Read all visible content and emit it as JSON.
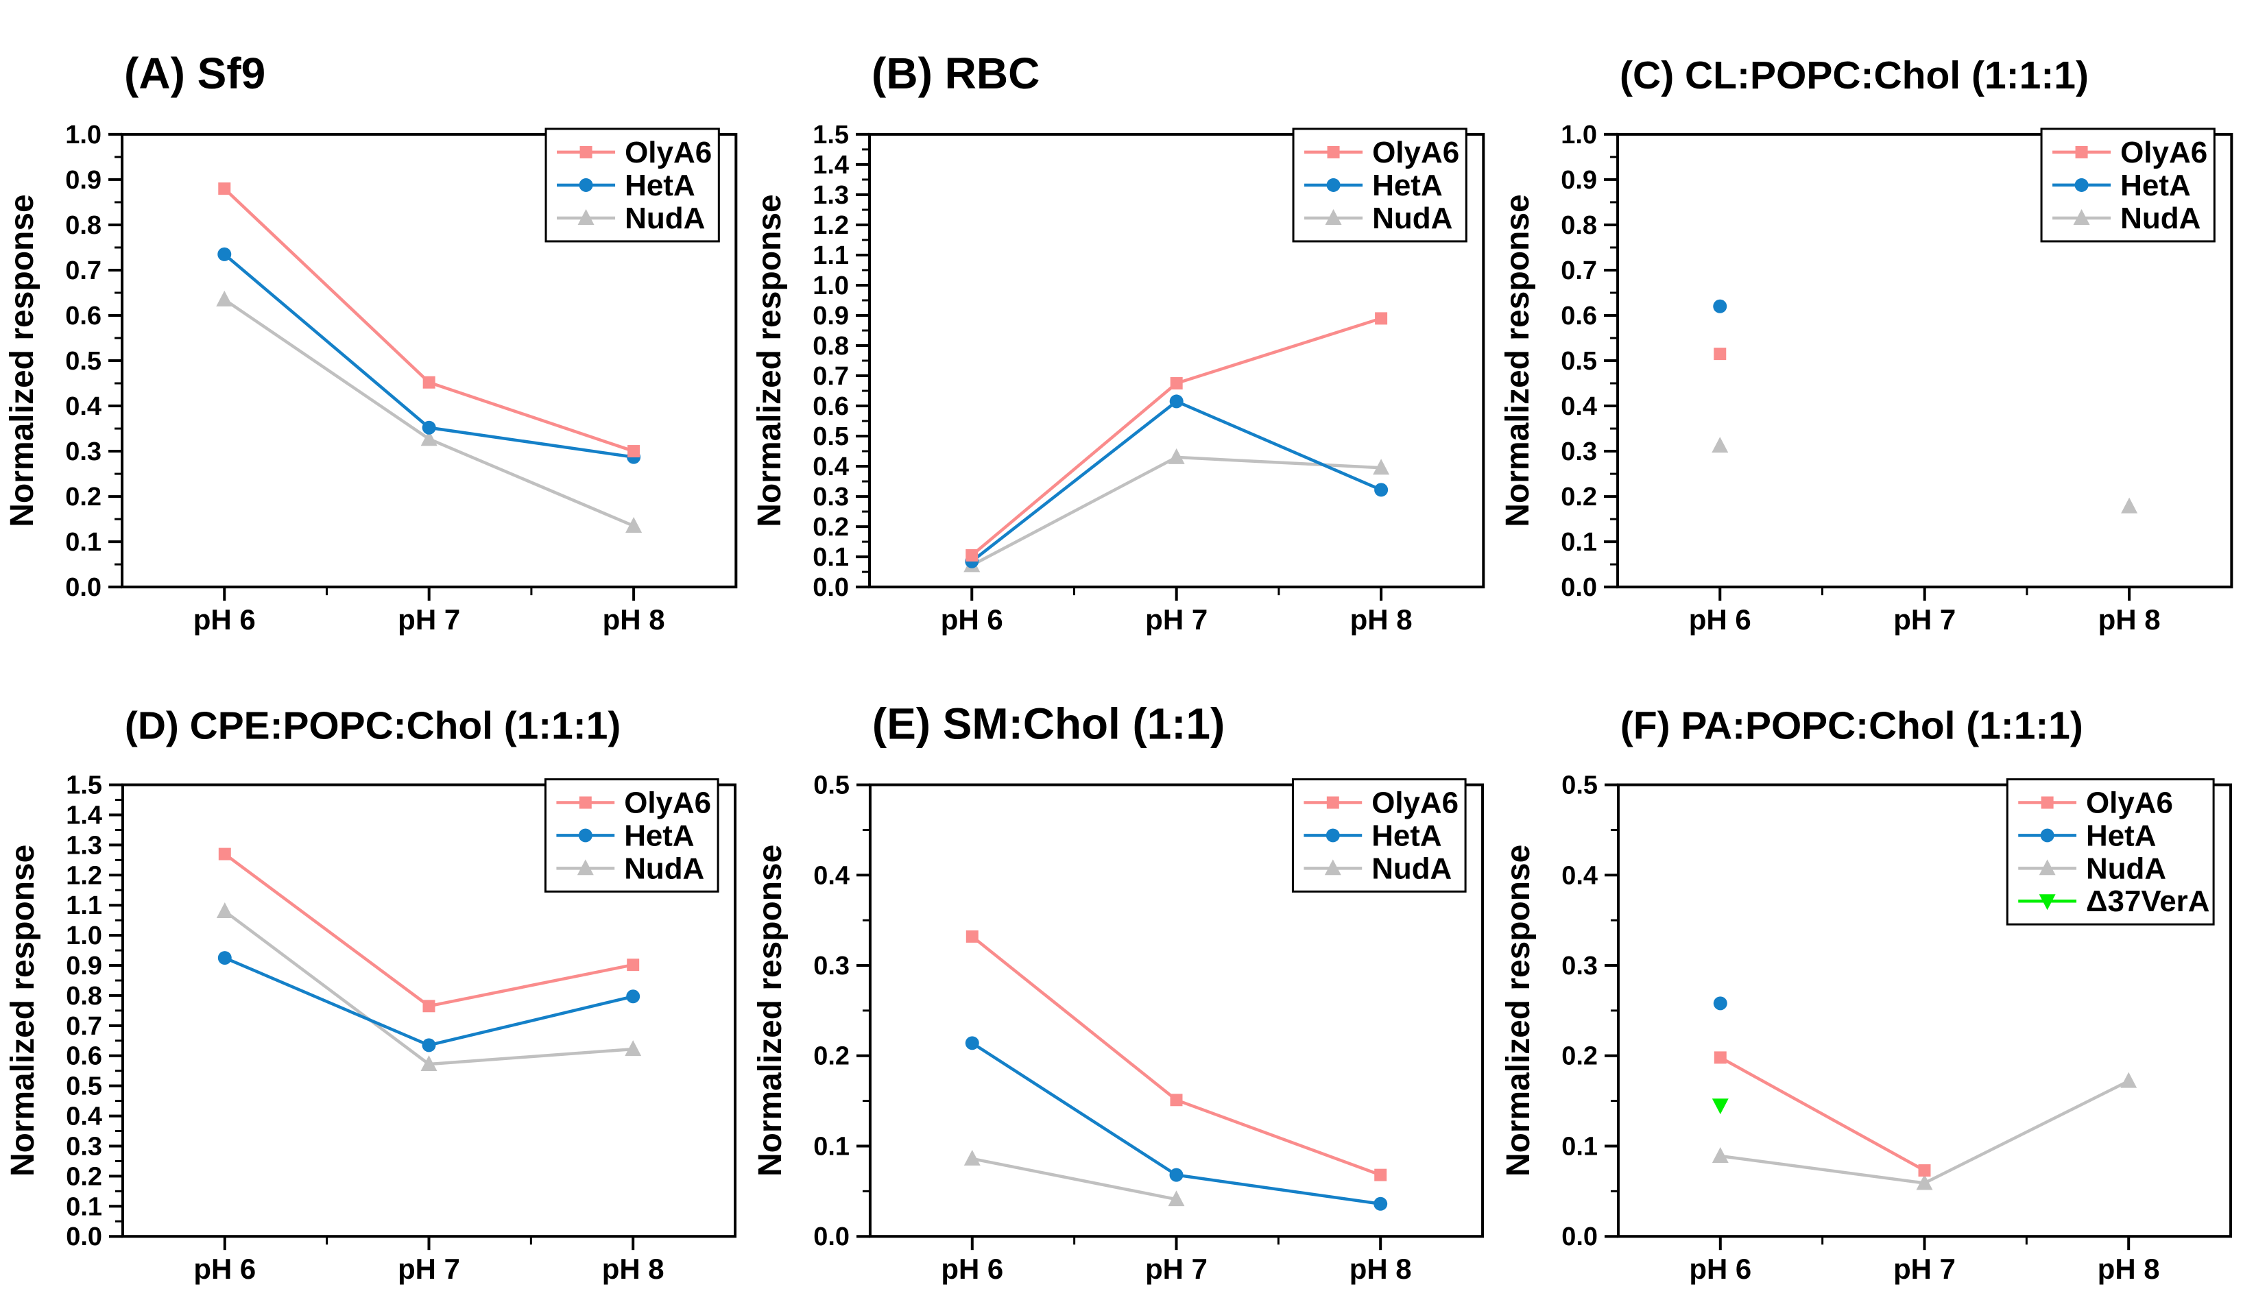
{
  "page": {
    "background": "#FFFFFF",
    "description_visible_text_only": "Six-panel line chart figure"
  },
  "figure": {
    "y_axis_label": "Normalized response",
    "x_tick_labels": [
      "pH 6",
      "pH 7",
      "pH 8"
    ],
    "colors": {
      "OlyA6": "#FA8C8C",
      "HetA": "#1480C8",
      "NudA": "#C0C0C0",
      "Δ37VerA": "#00F000",
      "axis": "#000000",
      "legend_border": "#000000"
    }
  },
  "chart_data": [
    {
      "type": "line",
      "panel": "A",
      "title": "(A) Sf9",
      "ylabel": "Normalized response",
      "categories": [
        "pH 6",
        "pH 7",
        "pH 8"
      ],
      "ylim": [
        0.0,
        1.0
      ],
      "ytick_step": 0.1,
      "grid": false,
      "legend_position": "top-right",
      "series": [
        {
          "name": "OlyA6",
          "color": "#FA8C8C",
          "marker": "square",
          "values": [
            0.88,
            0.452,
            0.3
          ]
        },
        {
          "name": "HetA",
          "color": "#1480C8",
          "marker": "circle",
          "values": [
            0.735,
            0.352,
            0.287
          ]
        },
        {
          "name": "NudA",
          "color": "#C0C0C0",
          "marker": "triangle-up",
          "values": [
            0.635,
            0.327,
            0.135
          ]
        }
      ]
    },
    {
      "type": "line",
      "panel": "B",
      "title": "(B) RBC",
      "ylabel": "Normalized response",
      "categories": [
        "pH 6",
        "pH 7",
        "pH 8"
      ],
      "ylim": [
        0.0,
        1.5
      ],
      "ytick_step": 0.1,
      "grid": false,
      "legend_position": "top-right",
      "series": [
        {
          "name": "OlyA6",
          "color": "#FA8C8C",
          "marker": "square",
          "values": [
            0.105,
            0.675,
            0.89
          ]
        },
        {
          "name": "HetA",
          "color": "#1480C8",
          "marker": "circle",
          "values": [
            0.085,
            0.615,
            0.322
          ]
        },
        {
          "name": "NudA",
          "color": "#C0C0C0",
          "marker": "triangle-up",
          "values": [
            0.072,
            0.43,
            0.395
          ]
        }
      ]
    },
    {
      "type": "line",
      "panel": "C",
      "title": "(C) CL:POPC:Chol (1:1:1)",
      "ylabel": "Normalized response",
      "categories": [
        "pH 6",
        "pH 7",
        "pH 8"
      ],
      "ylim": [
        0.0,
        1.0
      ],
      "ytick_step": 0.1,
      "grid": false,
      "legend_position": "top-right",
      "series": [
        {
          "name": "OlyA6",
          "color": "#FA8C8C",
          "marker": "square",
          "values": [
            0.515,
            null,
            null
          ]
        },
        {
          "name": "HetA",
          "color": "#1480C8",
          "marker": "circle",
          "values": [
            0.62,
            null,
            null
          ]
        },
        {
          "name": "NudA",
          "color": "#C0C0C0",
          "marker": "triangle-up",
          "values": [
            0.312,
            null,
            0.178
          ]
        }
      ]
    },
    {
      "type": "line",
      "panel": "D",
      "title": "(D) CPE:POPC:Chol (1:1:1)",
      "ylabel": "Normalized response",
      "categories": [
        "pH 6",
        "pH 7",
        "pH 8"
      ],
      "ylim": [
        0.0,
        1.5
      ],
      "ytick_step": 0.1,
      "grid": false,
      "legend_position": "top-right",
      "series": [
        {
          "name": "OlyA6",
          "color": "#FA8C8C",
          "marker": "square",
          "values": [
            1.27,
            0.765,
            0.902
          ]
        },
        {
          "name": "HetA",
          "color": "#1480C8",
          "marker": "circle",
          "values": [
            0.925,
            0.635,
            0.797
          ]
        },
        {
          "name": "NudA",
          "color": "#C0C0C0",
          "marker": "triangle-up",
          "values": [
            1.08,
            0.572,
            0.622
          ]
        }
      ]
    },
    {
      "type": "line",
      "panel": "E",
      "title": "(E) SM:Chol (1:1)",
      "ylabel": "Normalized response",
      "categories": [
        "pH 6",
        "pH 7",
        "pH 8"
      ],
      "ylim": [
        0.0,
        0.5
      ],
      "ytick_step": 0.1,
      "grid": false,
      "legend_position": "top-right",
      "series": [
        {
          "name": "OlyA6",
          "color": "#FA8C8C",
          "marker": "square",
          "values": [
            0.332,
            0.151,
            0.068
          ]
        },
        {
          "name": "HetA",
          "color": "#1480C8",
          "marker": "circle",
          "values": [
            0.214,
            0.068,
            0.036
          ]
        },
        {
          "name": "NudA",
          "color": "#C0C0C0",
          "marker": "triangle-up",
          "values": [
            0.086,
            0.041,
            null
          ]
        }
      ]
    },
    {
      "type": "line",
      "panel": "F",
      "title": "(F) PA:POPC:Chol (1:1:1)",
      "ylabel": "Normalized response",
      "categories": [
        "pH 6",
        "pH 7",
        "pH 8"
      ],
      "ylim": [
        0.0,
        0.5
      ],
      "ytick_step": 0.1,
      "grid": false,
      "legend_position": "top-right",
      "series": [
        {
          "name": "OlyA6",
          "color": "#FA8C8C",
          "marker": "square",
          "values": [
            0.198,
            0.073,
            null
          ]
        },
        {
          "name": "HetA",
          "color": "#1480C8",
          "marker": "circle",
          "values": [
            0.258,
            null,
            null
          ]
        },
        {
          "name": "NudA",
          "color": "#C0C0C0",
          "marker": "triangle-up",
          "values": [
            0.089,
            0.059,
            0.172
          ]
        },
        {
          "name": "Δ37VerA",
          "color": "#00F000",
          "marker": "triangle-down",
          "values": [
            0.145,
            null,
            null
          ]
        }
      ]
    }
  ]
}
